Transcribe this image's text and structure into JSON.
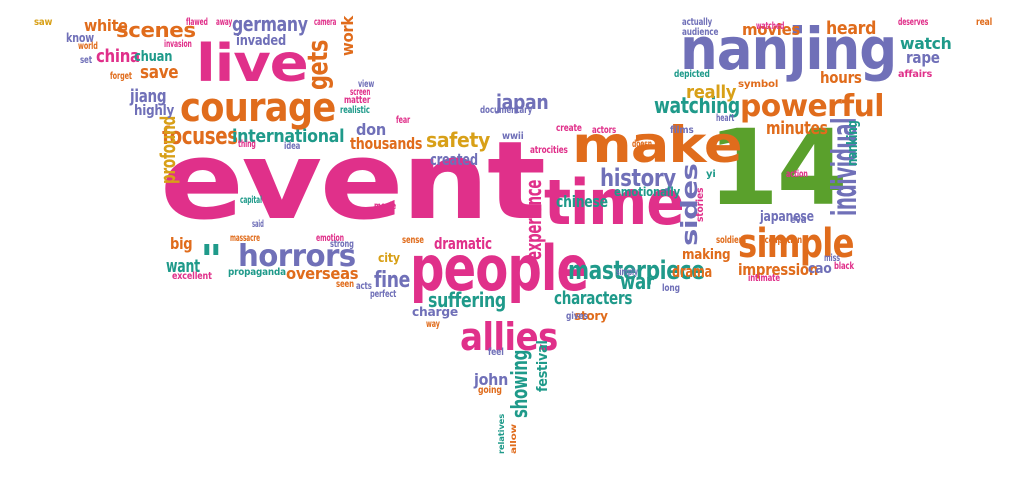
{
  "colors": {
    "pink": "#e0308a",
    "green": "#5aa02c",
    "orange": "#e06c1c",
    "purple": "#7070b8",
    "gold": "#d8a018",
    "teal": "#1f9a8a"
  },
  "words": [
    {
      "text": "event",
      "color": "pink",
      "vertical": false
    },
    {
      "text": "14",
      "color": "green",
      "vertical": false
    },
    {
      "text": "make",
      "color": "orange",
      "vertical": false
    },
    {
      "text": "time",
      "color": "pink",
      "vertical": false
    },
    {
      "text": "people",
      "color": "pink",
      "vertical": false
    },
    {
      "text": "nanjing",
      "color": "purple",
      "vertical": false
    },
    {
      "text": "live",
      "color": "pink",
      "vertical": false
    },
    {
      "text": "courage",
      "color": "orange",
      "vertical": false
    },
    {
      "text": "allies",
      "color": "pink",
      "vertical": false
    },
    {
      "text": "simple",
      "color": "orange",
      "vertical": false
    },
    {
      "text": "powerful",
      "color": "orange",
      "vertical": false
    },
    {
      "text": "horrors",
      "color": "purple",
      "vertical": false
    },
    {
      "text": "masterpiece",
      "color": "teal",
      "vertical": false
    },
    {
      "text": "history",
      "color": "purple",
      "vertical": false
    },
    {
      "text": "individual",
      "color": "purple",
      "vertical": true
    },
    {
      "text": "focuses",
      "color": "orange",
      "vertical": false
    },
    {
      "text": "characters",
      "color": "teal",
      "vertical": false
    },
    {
      "text": "suffering",
      "color": "teal",
      "vertical": false
    },
    {
      "text": "scenes",
      "color": "orange",
      "vertical": false
    },
    {
      "text": "safety",
      "color": "gold",
      "vertical": false
    },
    {
      "text": "china",
      "color": "pink",
      "vertical": false
    },
    {
      "text": "save",
      "color": "orange",
      "vertical": false
    },
    {
      "text": "japan",
      "color": "purple",
      "vertical": false
    },
    {
      "text": "watching",
      "color": "teal",
      "vertical": false
    },
    {
      "text": "germany",
      "color": "purple",
      "vertical": false
    },
    {
      "text": "gets",
      "color": "orange",
      "vertical": true
    },
    {
      "text": "jiang",
      "color": "purple",
      "vertical": false
    },
    {
      "text": "white",
      "color": "orange",
      "vertical": false
    },
    {
      "text": "international",
      "color": "teal",
      "vertical": false
    },
    {
      "text": "movies",
      "color": "orange",
      "vertical": false
    },
    {
      "text": "watch",
      "color": "teal",
      "vertical": false
    },
    {
      "text": "heard",
      "color": "orange",
      "vertical": false
    },
    {
      "text": "rape",
      "color": "purple",
      "vertical": false
    },
    {
      "text": "really",
      "color": "gold",
      "vertical": false
    },
    {
      "text": "minutes",
      "color": "orange",
      "vertical": false
    },
    {
      "text": "hours",
      "color": "orange",
      "vertical": false
    },
    {
      "text": "sides",
      "color": "purple",
      "vertical": true
    },
    {
      "text": "war",
      "color": "teal",
      "vertical": false
    },
    {
      "text": "fine",
      "color": "purple",
      "vertical": false
    },
    {
      "text": "john",
      "color": "purple",
      "vertical": false
    },
    {
      "text": "showing",
      "color": "teal",
      "vertical": true
    },
    {
      "text": "chinese",
      "color": "teal",
      "vertical": false
    },
    {
      "text": "drama",
      "color": "orange",
      "vertical": false
    },
    {
      "text": "impression",
      "color": "orange",
      "vertical": false
    },
    {
      "text": "want",
      "color": "teal",
      "vertical": false
    },
    {
      "text": "overseas",
      "color": "orange",
      "vertical": false
    },
    {
      "text": "dramatic",
      "color": "pink",
      "vertical": false
    },
    {
      "text": "created",
      "color": "purple",
      "vertical": false
    },
    {
      "text": "thousands",
      "color": "orange",
      "vertical": false
    },
    {
      "text": "don",
      "color": "purple",
      "vertical": false
    },
    {
      "text": "charge",
      "color": "purple",
      "vertical": false
    },
    {
      "text": "story",
      "color": "orange",
      "vertical": false
    },
    {
      "text": "emotionally",
      "color": "teal",
      "vertical": false
    },
    {
      "text": "making",
      "color": "orange",
      "vertical": false
    },
    {
      "text": "japanese",
      "color": "purple",
      "vertical": false
    },
    {
      "text": "cao",
      "color": "purple",
      "vertical": false
    },
    {
      "text": "big",
      "color": "orange",
      "vertical": false
    },
    {
      "text": "ll",
      "color": "teal",
      "vertical": false
    },
    {
      "text": "profound",
      "color": "gold",
      "vertical": true
    },
    {
      "text": "invaded",
      "color": "purple",
      "vertical": false
    },
    {
      "text": "chuan",
      "color": "teal",
      "vertical": false
    },
    {
      "text": "highly",
      "color": "purple",
      "vertical": false
    },
    {
      "text": "work",
      "color": "orange",
      "vertical": true
    },
    {
      "text": "experience",
      "color": "pink",
      "vertical": true
    },
    {
      "text": "know",
      "color": "purple",
      "vertical": false
    },
    {
      "text": "city",
      "color": "gold",
      "vertical": false
    },
    {
      "text": "propaganda",
      "color": "teal",
      "vertical": false
    },
    {
      "text": "festival",
      "color": "teal",
      "vertical": true
    },
    {
      "text": "saw",
      "color": "gold",
      "vertical": false
    },
    {
      "text": "going",
      "color": "orange",
      "vertical": false
    },
    {
      "text": "feel",
      "color": "purple",
      "vertical": false
    },
    {
      "text": "wwii",
      "color": "purple",
      "vertical": false
    },
    {
      "text": "nanking",
      "color": "teal",
      "vertical": true
    },
    {
      "text": "excellent",
      "color": "pink",
      "vertical": false
    },
    {
      "text": "atrocities",
      "color": "pink",
      "vertical": false
    },
    {
      "text": "documentary",
      "color": "purple",
      "vertical": false
    },
    {
      "text": "create",
      "color": "pink",
      "vertical": false
    },
    {
      "text": "actors",
      "color": "pink",
      "vertical": false
    },
    {
      "text": "heart",
      "color": "purple",
      "vertical": false
    },
    {
      "text": "doesn",
      "color": "orange",
      "vertical": false
    },
    {
      "text": "films",
      "color": "purple",
      "vertical": false
    },
    {
      "text": "symbol",
      "color": "orange",
      "vertical": false
    },
    {
      "text": "depicted",
      "color": "teal",
      "vertical": false
    },
    {
      "text": "affairs",
      "color": "pink",
      "vertical": false
    },
    {
      "text": "watched",
      "color": "pink",
      "vertical": false
    },
    {
      "text": "deserves",
      "color": "pink",
      "vertical": false
    },
    {
      "text": "actually",
      "color": "purple",
      "vertical": false
    },
    {
      "text": "audience",
      "color": "purple",
      "vertical": false
    },
    {
      "text": "real",
      "color": "orange",
      "vertical": false
    },
    {
      "text": "camera",
      "color": "pink",
      "vertical": false
    },
    {
      "text": "away",
      "color": "pink",
      "vertical": false
    },
    {
      "text": "flawed",
      "color": "pink",
      "vertical": false
    },
    {
      "text": "world",
      "color": "orange",
      "vertical": false
    },
    {
      "text": "invasion",
      "color": "pink",
      "vertical": false
    },
    {
      "text": "set",
      "color": "purple",
      "vertical": false
    },
    {
      "text": "forget",
      "color": "orange",
      "vertical": false
    },
    {
      "text": "matter",
      "color": "pink",
      "vertical": false
    },
    {
      "text": "realistic",
      "color": "teal",
      "vertical": false
    },
    {
      "text": "view",
      "color": "purple",
      "vertical": false
    },
    {
      "text": "screen",
      "color": "pink",
      "vertical": false
    },
    {
      "text": "fear",
      "color": "pink",
      "vertical": false
    },
    {
      "text": "thing",
      "color": "pink",
      "vertical": false
    },
    {
      "text": "idea",
      "color": "purple",
      "vertical": false
    },
    {
      "text": "capital",
      "color": "teal",
      "vertical": false
    },
    {
      "text": "said",
      "color": "purple",
      "vertical": false
    },
    {
      "text": "massacre",
      "color": "orange",
      "vertical": false
    },
    {
      "text": "emotion",
      "color": "pink",
      "vertical": false
    },
    {
      "text": "strong",
      "color": "purple",
      "vertical": false
    },
    {
      "text": "seen",
      "color": "orange",
      "vertical": false
    },
    {
      "text": "acts",
      "color": "purple",
      "vertical": false
    },
    {
      "text": "perfect",
      "color": "purple",
      "vertical": false
    },
    {
      "text": "sense",
      "color": "orange",
      "vertical": false
    },
    {
      "text": "movie",
      "color": "pink",
      "vertical": false
    },
    {
      "text": "way",
      "color": "orange",
      "vertical": false
    },
    {
      "text": "gives",
      "color": "purple",
      "vertical": false
    },
    {
      "text": "relatives",
      "color": "teal",
      "vertical": true
    },
    {
      "text": "allow",
      "color": "orange",
      "vertical": true
    },
    {
      "text": "action",
      "color": "pink",
      "vertical": false
    },
    {
      "text": "eva",
      "color": "purple",
      "vertical": false
    },
    {
      "text": "occupation",
      "color": "orange",
      "vertical": false
    },
    {
      "text": "stories",
      "color": "pink",
      "vertical": true
    },
    {
      "text": "soldiers",
      "color": "orange",
      "vertical": false
    },
    {
      "text": "simply",
      "color": "purple",
      "vertical": false
    },
    {
      "text": "intimate",
      "color": "pink",
      "vertical": false
    },
    {
      "text": "miss",
      "color": "purple",
      "vertical": false
    },
    {
      "text": "black",
      "color": "pink",
      "vertical": false
    },
    {
      "text": "long",
      "color": "purple",
      "vertical": false
    },
    {
      "text": "yi",
      "color": "teal",
      "vertical": false
    }
  ]
}
